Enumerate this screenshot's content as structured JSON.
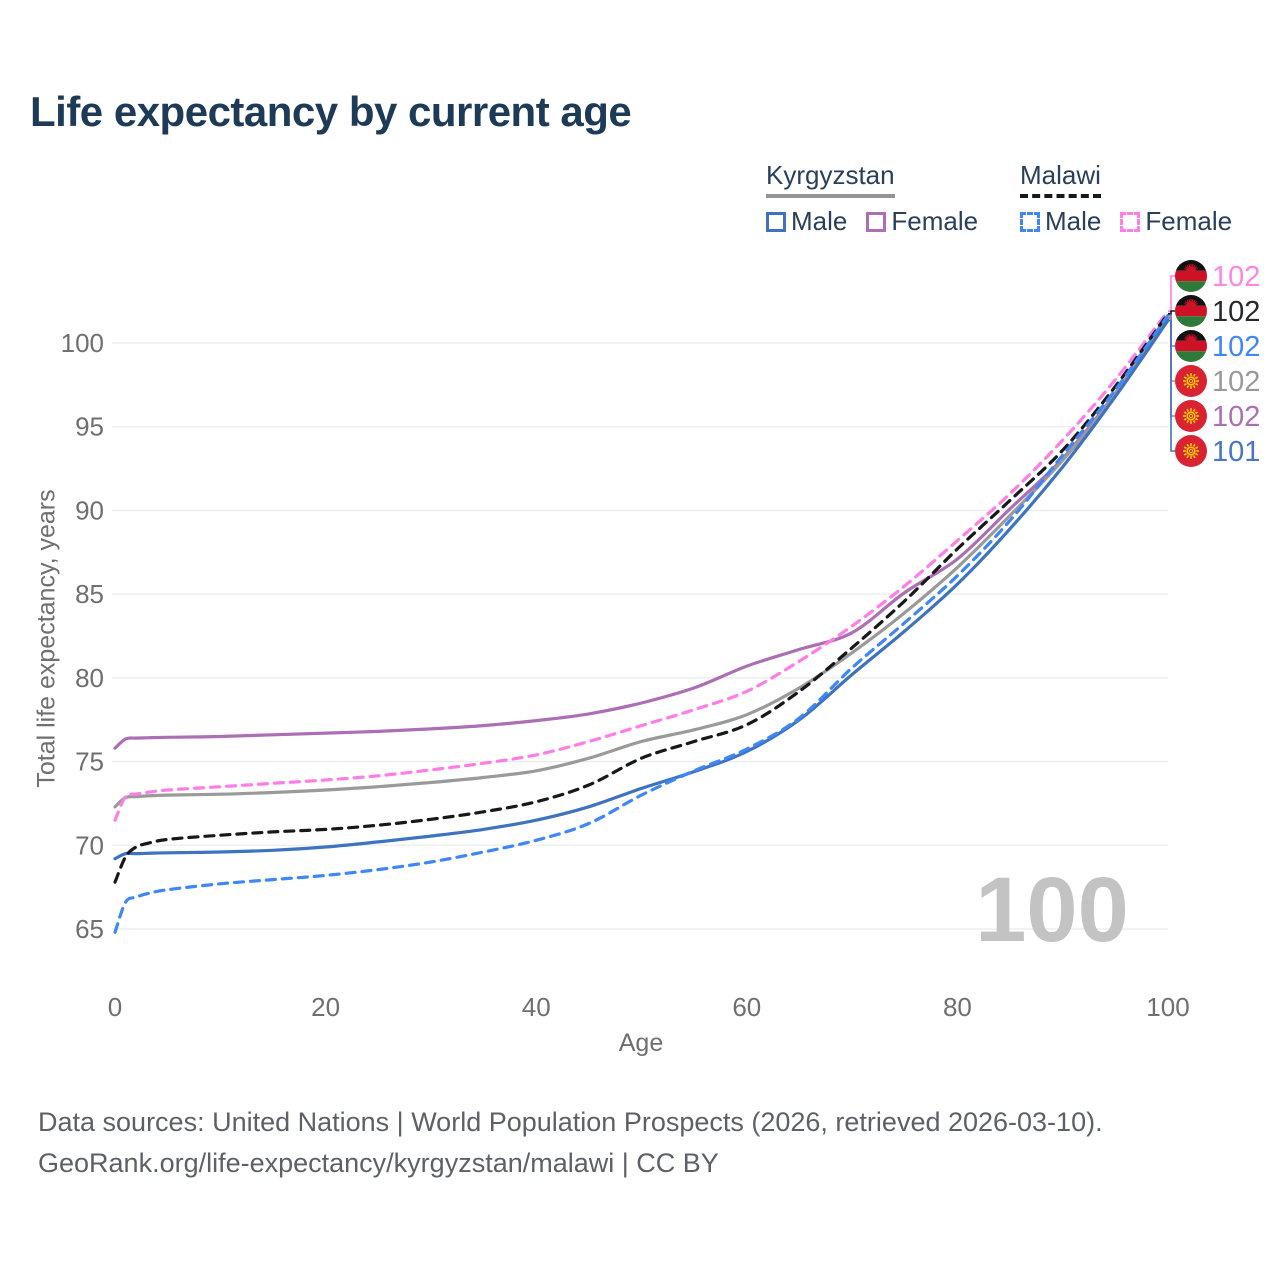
{
  "title": "Life expectancy by current age",
  "legend": {
    "groups": [
      {
        "label": "Kyrgyzstan",
        "line_style": "solid",
        "line_color": "#949494",
        "items": [
          {
            "label": "Male",
            "color": "#3e73c0"
          },
          {
            "label": "Female",
            "color": "#ac6fb5"
          }
        ]
      },
      {
        "label": "Malawi",
        "line_style": "dashed",
        "line_color": "#17181a",
        "items": [
          {
            "label": "Male",
            "color": "#3f86f7"
          },
          {
            "label": "Female",
            "color": "#ff7de5"
          }
        ]
      }
    ]
  },
  "footer": {
    "line1": "Data sources: United Nations | World Population Prospects (2026, retrieved 2026-03-10).",
    "line2": "GeoRank.org/life-expectancy/kyrgyzstan/malawi | CC BY"
  },
  "chart_data": {
    "type": "line",
    "title": "Life expectancy by current age",
    "xlabel": "Age",
    "ylabel": "Total life expectancy, years",
    "xlim": [
      0,
      100
    ],
    "ylim": [
      63,
      104
    ],
    "x_ticks": [
      0,
      20,
      40,
      60,
      80,
      100
    ],
    "y_ticks": [
      65,
      70,
      75,
      80,
      85,
      90,
      95,
      100
    ],
    "grid": "horizontal",
    "legend_position": "top-right",
    "age_indicator": "100",
    "x": [
      0,
      1,
      2,
      3,
      5,
      10,
      15,
      20,
      25,
      30,
      35,
      40,
      45,
      50,
      55,
      60,
      65,
      70,
      75,
      80,
      85,
      90,
      95,
      100
    ],
    "series": [
      {
        "id": "kyrgyzstan-female",
        "name": "Kyrgyzstan Female",
        "country": "Kyrgyzstan",
        "sex": "Female",
        "color": "#ac6fb5",
        "dash": false,
        "flag": "kyrgyzstan",
        "end_label": "102",
        "label_color": "#ac6fb5",
        "values": [
          75.8,
          76.35,
          76.4,
          76.42,
          76.45,
          76.5,
          76.6,
          76.7,
          76.8,
          76.95,
          77.15,
          77.45,
          77.85,
          78.5,
          79.4,
          80.7,
          81.7,
          82.7,
          85.1,
          87.1,
          90.1,
          93.1,
          97.0,
          101.5
        ]
      },
      {
        "id": "kyrgyzstan-total",
        "name": "Kyrgyzstan",
        "country": "Kyrgyzstan",
        "sex": "Both",
        "color": "#9a9a9a",
        "dash": false,
        "flag": "kyrgyzstan",
        "end_label": "102",
        "label_color": "#9a9a9a",
        "values": [
          72.3,
          72.85,
          72.9,
          72.95,
          73.0,
          73.05,
          73.15,
          73.3,
          73.5,
          73.75,
          74.05,
          74.45,
          75.2,
          76.2,
          76.9,
          77.8,
          79.4,
          81.5,
          83.9,
          86.6,
          89.7,
          93.0,
          96.9,
          101.55
        ]
      },
      {
        "id": "kyrgyzstan-male",
        "name": "Kyrgyzstan Male",
        "country": "Kyrgyzstan",
        "sex": "Male",
        "color": "#3e73c0",
        "dash": false,
        "flag": "kyrgyzstan",
        "end_label": "101",
        "label_color": "#4a74c8",
        "values": [
          69.2,
          69.5,
          69.5,
          69.52,
          69.55,
          69.6,
          69.7,
          69.9,
          70.2,
          70.55,
          70.95,
          71.5,
          72.3,
          73.4,
          74.4,
          75.6,
          77.5,
          80.2,
          82.8,
          85.6,
          88.9,
          92.6,
          96.8,
          101.35
        ]
      },
      {
        "id": "malawi-female",
        "name": "Malawi Female",
        "country": "Malawi",
        "sex": "Female",
        "color": "#ff7de5",
        "dash": true,
        "flag": "malawi",
        "end_label": "102",
        "label_color": "#ff85e3",
        "values": [
          71.5,
          72.9,
          73.05,
          73.15,
          73.3,
          73.5,
          73.7,
          73.9,
          74.15,
          74.5,
          74.9,
          75.4,
          76.2,
          77.15,
          78.1,
          79.2,
          81.0,
          83.1,
          85.5,
          88.2,
          91.0,
          94.2,
          97.8,
          101.9
        ]
      },
      {
        "id": "malawi-total",
        "name": "Malawi",
        "country": "Malawi",
        "sex": "Both",
        "color": "#17181a",
        "dash": true,
        "flag": "malawi",
        "end_label": "102",
        "label_color": "#26282b",
        "values": [
          67.8,
          69.3,
          69.9,
          70.1,
          70.35,
          70.6,
          70.8,
          70.95,
          71.2,
          71.55,
          72.0,
          72.6,
          73.6,
          75.2,
          76.2,
          77.2,
          79.2,
          81.8,
          84.6,
          87.7,
          90.6,
          93.6,
          97.4,
          101.75
        ]
      },
      {
        "id": "malawi-male",
        "name": "Malawi Male",
        "country": "Malawi",
        "sex": "Male",
        "color": "#3f86f7",
        "dash": true,
        "flag": "malawi",
        "end_label": "102",
        "label_color": "#3f86f7",
        "values": [
          64.8,
          66.6,
          66.9,
          67.1,
          67.35,
          67.7,
          67.95,
          68.2,
          68.55,
          69.0,
          69.6,
          70.3,
          71.3,
          73.0,
          74.45,
          75.75,
          77.6,
          80.6,
          83.3,
          86.1,
          89.4,
          93.3,
          97.2,
          101.65
        ]
      }
    ]
  }
}
